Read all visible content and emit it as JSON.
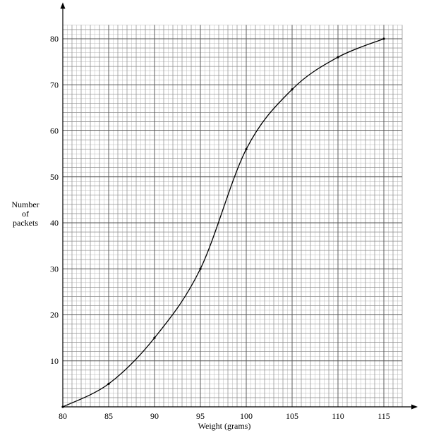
{
  "chart_data": {
    "type": "line",
    "title": "",
    "xlabel": "Weight (grams)",
    "ylabel_lines": [
      "Number",
      "of",
      "packets"
    ],
    "xlim": [
      80,
      117
    ],
    "ylim": [
      0,
      83
    ],
    "xticks": [
      80,
      85,
      90,
      95,
      100,
      105,
      110,
      115
    ],
    "yticks": [
      10,
      20,
      30,
      40,
      50,
      60,
      70,
      80
    ],
    "minor_grid_x_step": 0.5,
    "minor_grid_y_step": 1,
    "major_grid_x_step": 5,
    "major_grid_y_step": 10,
    "grid": true,
    "series": [
      {
        "x": [
          80,
          85,
          90,
          95,
          100,
          105,
          110,
          115
        ],
        "y": [
          0,
          5,
          15,
          30,
          56,
          69,
          76,
          80
        ]
      }
    ]
  }
}
